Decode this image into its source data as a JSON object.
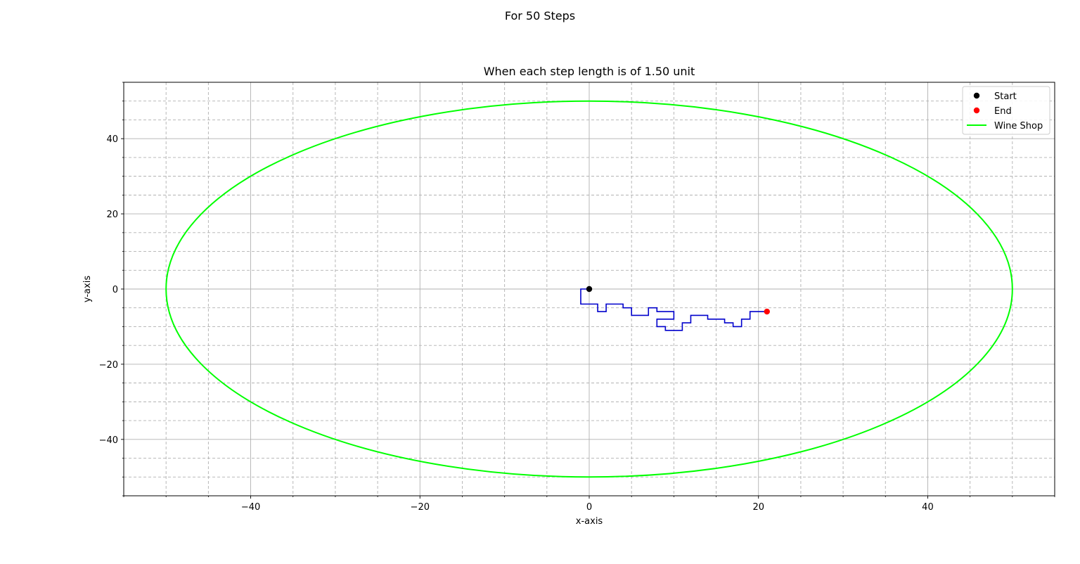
{
  "figure": {
    "suptitle": "For 50 Steps"
  },
  "chart_data": {
    "type": "line",
    "title": "When each step length is of 1.50 unit",
    "xlabel": "x-axis",
    "ylabel": "y-axis",
    "xlim": [
      -55,
      55
    ],
    "ylim": [
      -55,
      55
    ],
    "xticks": [
      -40,
      -20,
      0,
      20,
      40
    ],
    "yticks": [
      -40,
      -20,
      0,
      20,
      40
    ],
    "tick_labels": {
      "x": [
        "−40",
        "−20",
        "0",
        "20",
        "40"
      ],
      "y": [
        "−40",
        "−20",
        "0",
        "20",
        "40"
      ]
    },
    "grid": {
      "major": true,
      "minor": true,
      "minor_step": 5,
      "major_style": "solid",
      "minor_style": "dashed",
      "color": "#b0b0b0"
    },
    "legend_position": "top-right",
    "legend": [
      {
        "label": "Start",
        "marker": "dot",
        "color": "#000000"
      },
      {
        "label": "End",
        "marker": "dot",
        "color": "#ff0000"
      },
      {
        "label": "Wine Shop",
        "marker": "line",
        "color": "#00ff00"
      }
    ],
    "series": [
      {
        "name": "Wine Shop",
        "kind": "ellipse",
        "color": "#00ff00",
        "center": [
          0,
          0
        ],
        "rx": 50,
        "ry": 50
      },
      {
        "kind": "path",
        "color": "#0000cc",
        "points": [
          [
            0,
            0
          ],
          [
            -1,
            0
          ],
          [
            -1,
            -4
          ],
          [
            1,
            -4
          ],
          [
            1,
            -6
          ],
          [
            2,
            -6
          ],
          [
            2,
            -4
          ],
          [
            4,
            -4
          ],
          [
            4,
            -5
          ],
          [
            5,
            -5
          ],
          [
            5,
            -7
          ],
          [
            7,
            -7
          ],
          [
            7,
            -5
          ],
          [
            8,
            -5
          ],
          [
            8,
            -6
          ],
          [
            10,
            -6
          ],
          [
            10,
            -8
          ],
          [
            8,
            -8
          ],
          [
            8,
            -10
          ],
          [
            9,
            -10
          ],
          [
            9,
            -11
          ],
          [
            11,
            -11
          ],
          [
            11,
            -9
          ],
          [
            12,
            -9
          ],
          [
            12,
            -7
          ],
          [
            14,
            -7
          ],
          [
            14,
            -8
          ],
          [
            16,
            -8
          ],
          [
            16,
            -9
          ],
          [
            17,
            -9
          ],
          [
            17,
            -10
          ],
          [
            18,
            -10
          ],
          [
            18,
            -8
          ],
          [
            19,
            -8
          ],
          [
            19,
            -6
          ],
          [
            21,
            -6
          ]
        ]
      },
      {
        "name": "Start",
        "kind": "point",
        "color": "#000000",
        "x": 0,
        "y": 0
      },
      {
        "name": "End",
        "kind": "point",
        "color": "#ff0000",
        "x": 21,
        "y": -6
      }
    ]
  }
}
